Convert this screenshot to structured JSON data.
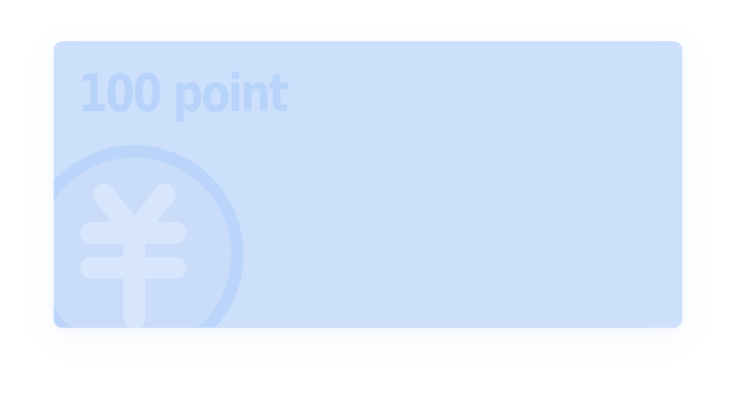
{
  "card": {
    "points_label": "100 point",
    "icon": "yen-coin-icon",
    "colors": {
      "background": "#cde0fb",
      "text": "#b8d3f9",
      "coin_ring": "#bbd5fa",
      "coin_face": "#c9ddfb",
      "glyph": "#d7e6fc"
    }
  }
}
